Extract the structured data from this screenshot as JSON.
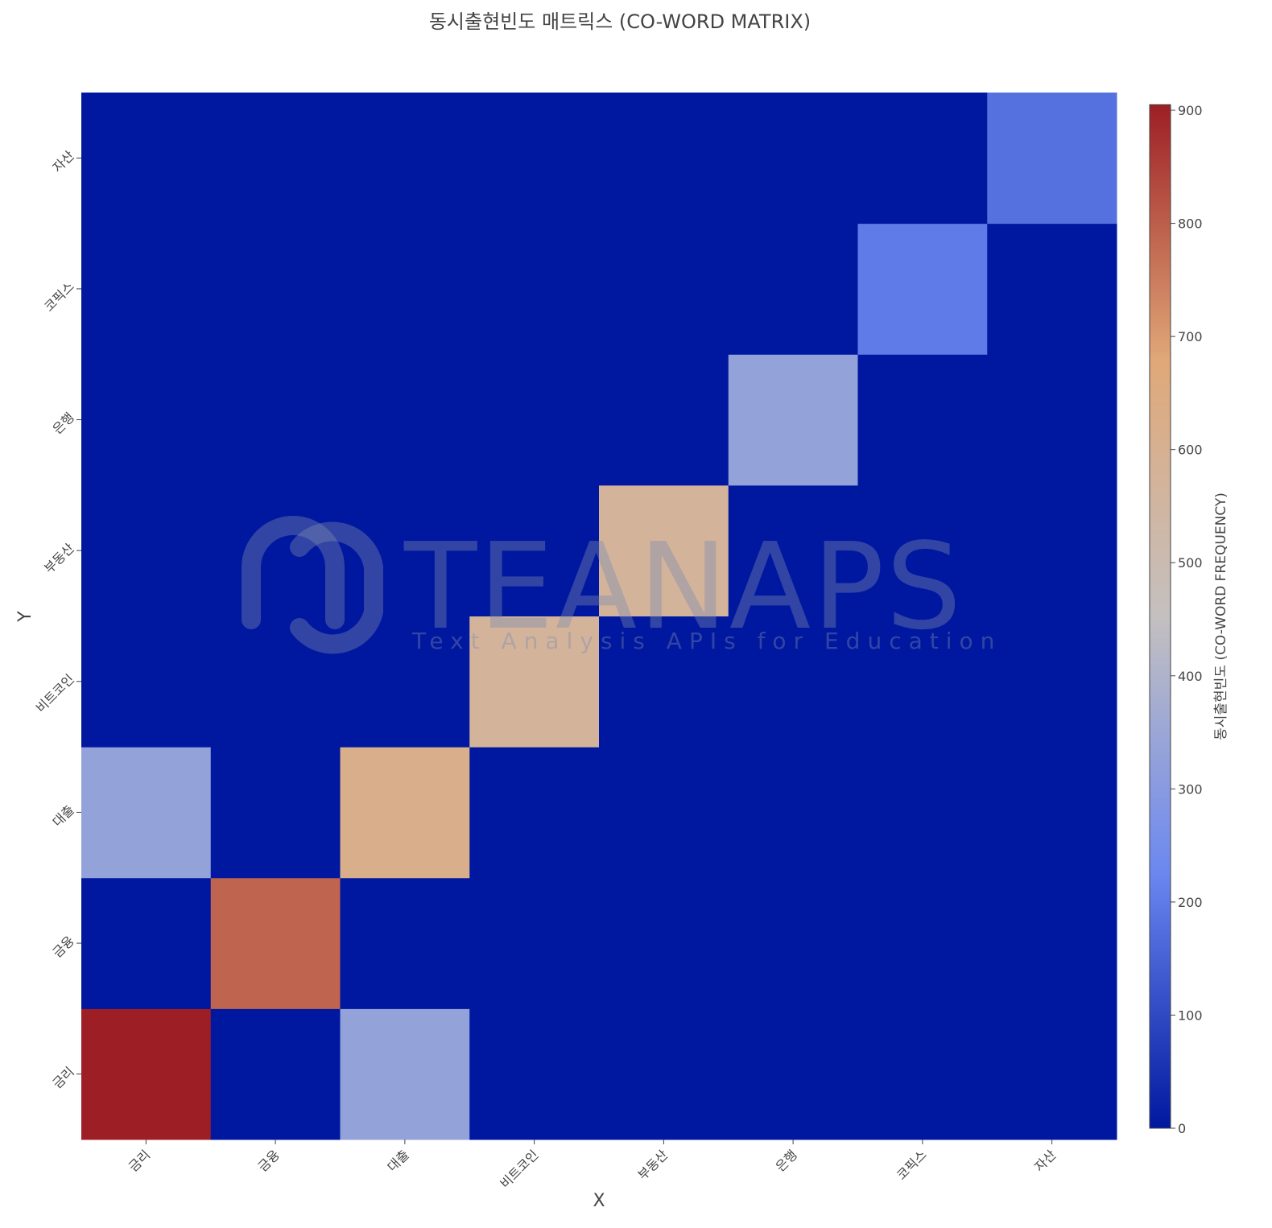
{
  "chart_data": {
    "type": "heatmap",
    "title": "동시출현빈도 매트릭스 (CO-WORD MATRIX)",
    "xlabel": "X",
    "ylabel": "Y",
    "x": [
      "금리",
      "금융",
      "대출",
      "비트코인",
      "부동산",
      "은행",
      "코픽스",
      "자산"
    ],
    "y": [
      "금리",
      "금융",
      "대출",
      "비트코인",
      "부동산",
      "은행",
      "코픽스",
      "자산"
    ],
    "z": [
      [
        905,
        0,
        330,
        0,
        0,
        0,
        0,
        0
      ],
      [
        0,
        790,
        0,
        0,
        0,
        0,
        0,
        0
      ],
      [
        330,
        0,
        620,
        0,
        0,
        0,
        0,
        0
      ],
      [
        0,
        0,
        0,
        570,
        0,
        0,
        0,
        0
      ],
      [
        0,
        0,
        0,
        0,
        570,
        0,
        0,
        0
      ],
      [
        0,
        0,
        0,
        0,
        0,
        330,
        0,
        0
      ],
      [
        0,
        0,
        0,
        0,
        0,
        0,
        200,
        0
      ],
      [
        0,
        0,
        0,
        0,
        0,
        0,
        0,
        180
      ]
    ],
    "colorscale": "coolwarm",
    "colorscale_stops": [
      "#00189f",
      "#6b88f0",
      "#c4c0c0",
      "#e0a878",
      "#9d1e24"
    ],
    "colorbar": {
      "title": "동시출현빈도 (CO-WORD FREQUENCY)",
      "range": [
        0,
        905
      ],
      "ticks": [
        0,
        100,
        200,
        300,
        400,
        500,
        600,
        700,
        800,
        900
      ]
    }
  },
  "watermark": {
    "brand": "TEANAPS",
    "tagline": "Text Analysis APIs for Education"
  }
}
